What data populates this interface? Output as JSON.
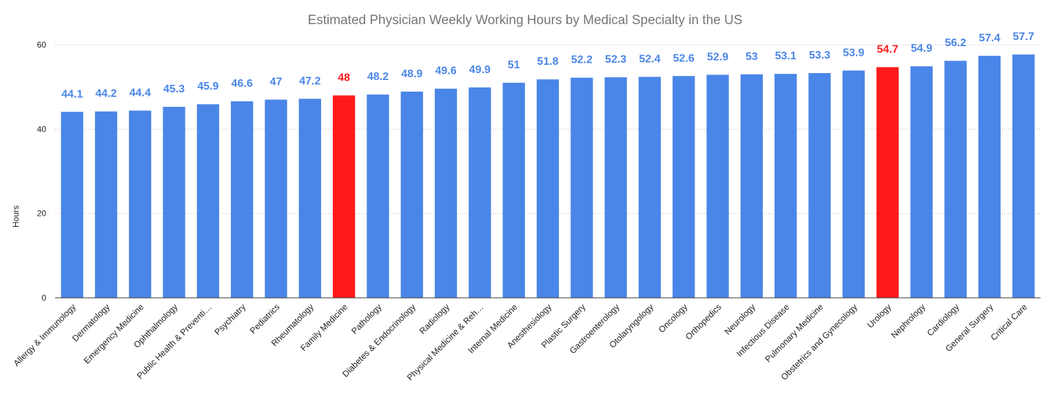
{
  "chart_data": {
    "type": "bar",
    "title": "Estimated Physician Weekly Working Hours by Medical Specialty in the US",
    "xlabel": "",
    "ylabel": "Hours",
    "ylim": [
      0,
      60
    ],
    "yticks": [
      0,
      20,
      40,
      60
    ],
    "grid": true,
    "categories": [
      "Allergy & Immunology",
      "Dermatology",
      "Emergency Medicine",
      "Ophthalmology",
      "Public Health & Preventi…",
      "Psychiatry",
      "Pediatrics",
      "Rheumatology",
      "Family Medicine",
      "Pathology",
      "Diabetes & Endocrinology",
      "Radiology",
      "Physical Medicine & Reh…",
      "Internal Medicine",
      "Anesthesiology",
      "Plastic Surgery",
      "Gastroenterology",
      "Otolaryngology",
      "Oncology",
      "Orthopedics",
      "Neurology",
      "Infectious Disease",
      "Pulmonary Medicine",
      "Obstetrics and Gynecology",
      "Urology",
      "Nephrology",
      "Cardiology",
      "General Surgery",
      "Critical Care"
    ],
    "values": [
      44.1,
      44.2,
      44.4,
      45.3,
      45.9,
      46.6,
      47,
      47.2,
      48,
      48.2,
      48.9,
      49.6,
      49.9,
      51,
      51.8,
      52.2,
      52.3,
      52.4,
      52.6,
      52.9,
      53,
      53.1,
      53.3,
      53.9,
      54.7,
      54.9,
      56.2,
      57.4,
      57.7
    ],
    "highlighted": [
      "Family Medicine",
      "Urology"
    ],
    "colors": {
      "bar": "#4a86e8",
      "highlight": "#ff1a1a"
    }
  }
}
